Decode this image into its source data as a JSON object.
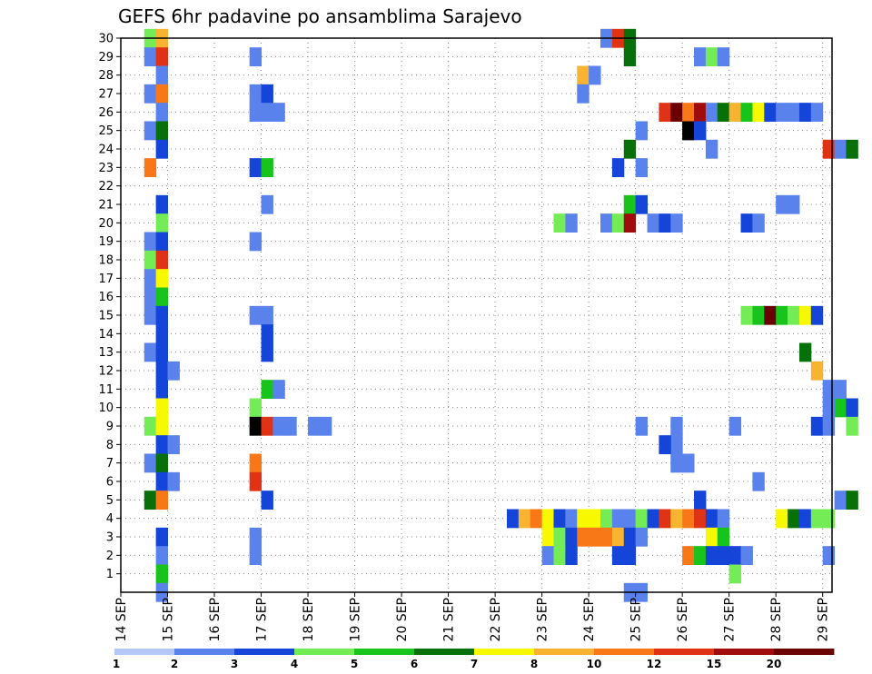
{
  "chart_data": {
    "type": "heatmap",
    "title": "GEFS 6hr padavine po ansamblima Sarajevo",
    "xlabel": "",
    "ylabel": "",
    "x_tick_labels": [
      "14 SEP",
      "15 SEP",
      "16 SEP",
      "17 SEP",
      "18 SEP",
      "19 SEP",
      "20 SEP",
      "21 SEP",
      "22 SEP",
      "23 SEP",
      "24 SEP",
      "25 SEP",
      "26 SEP",
      "27 SEP",
      "28 SEP",
      "29 SEP"
    ],
    "y_tick_labels": [
      "1",
      "2",
      "3",
      "4",
      "5",
      "6",
      "7",
      "8",
      "9",
      "10",
      "11",
      "12",
      "13",
      "14",
      "15",
      "16",
      "17",
      "18",
      "19",
      "20",
      "21",
      "22",
      "23",
      "24",
      "25",
      "26",
      "27",
      "28",
      "29",
      "30"
    ],
    "ylim": [
      0,
      30
    ],
    "xlim_days": [
      0,
      15.2
    ],
    "time_step_hours": 6,
    "grid": true,
    "colorbar": {
      "labels": [
        "1",
        "2",
        "3",
        "4",
        "5",
        "6",
        "7",
        "8",
        "10",
        "12",
        "15",
        "20"
      ],
      "colors": [
        "#b4c8f8",
        "#5a82ec",
        "#1444d8",
        "#74ec56",
        "#18c41c",
        "#087008",
        "#f8f800",
        "#f8b430",
        "#f87818",
        "#e03214",
        "#a00c0c",
        "#6a0000"
      ]
    },
    "cells": [
      [
        2,
        30,
        3
      ],
      [
        3,
        30,
        7
      ],
      [
        2,
        29,
        1
      ],
      [
        3,
        29,
        9
      ],
      [
        3,
        28,
        1
      ],
      [
        2,
        27,
        1
      ],
      [
        3,
        27,
        8
      ],
      [
        3,
        26,
        1
      ],
      [
        2,
        25,
        1
      ],
      [
        3,
        25,
        5
      ],
      [
        3,
        24,
        2
      ],
      [
        2,
        23,
        8
      ],
      [
        3,
        21,
        2
      ],
      [
        3,
        20,
        3
      ],
      [
        2,
        19,
        1
      ],
      [
        3,
        19,
        2
      ],
      [
        2,
        18,
        3
      ],
      [
        3,
        18,
        9
      ],
      [
        2,
        17,
        1
      ],
      [
        3,
        17,
        6
      ],
      [
        2,
        16,
        1
      ],
      [
        3,
        16,
        4
      ],
      [
        2,
        15,
        1
      ],
      [
        3,
        15,
        2
      ],
      [
        3,
        14,
        2
      ],
      [
        2,
        13,
        1
      ],
      [
        3,
        13,
        2
      ],
      [
        3,
        12,
        2
      ],
      [
        4,
        12,
        1
      ],
      [
        3,
        11,
        2
      ],
      [
        3,
        10,
        6
      ],
      [
        2,
        9,
        3
      ],
      [
        3,
        9,
        6
      ],
      [
        3,
        8,
        2
      ],
      [
        4,
        8,
        1
      ],
      [
        2,
        7,
        1
      ],
      [
        3,
        7,
        5
      ],
      [
        3,
        6,
        2
      ],
      [
        4,
        6,
        1
      ],
      [
        2,
        5,
        5
      ],
      [
        3,
        5,
        8
      ],
      [
        3,
        3,
        2
      ],
      [
        3,
        2,
        1
      ],
      [
        3,
        1,
        4
      ],
      [
        3,
        0,
        1
      ],
      [
        11,
        29,
        1
      ],
      [
        11,
        27,
        1
      ],
      [
        12,
        27,
        2
      ],
      [
        11,
        26,
        1
      ],
      [
        12,
        26,
        1
      ],
      [
        13,
        26,
        1
      ],
      [
        11,
        23,
        2
      ],
      [
        12,
        23,
        4
      ],
      [
        12,
        21,
        1
      ],
      [
        11,
        15,
        1
      ],
      [
        12,
        15,
        1
      ],
      [
        12,
        14,
        2
      ],
      [
        11,
        19,
        1
      ],
      [
        12,
        13,
        2
      ],
      [
        12,
        11,
        4
      ],
      [
        13,
        11,
        1
      ],
      [
        11,
        10,
        3
      ],
      [
        11,
        9,
        12
      ],
      [
        12,
        9,
        9
      ],
      [
        13,
        9,
        1
      ],
      [
        14,
        9,
        1
      ],
      [
        16,
        9,
        1
      ],
      [
        17,
        9,
        1
      ],
      [
        11,
        7,
        8
      ],
      [
        11,
        6,
        9
      ],
      [
        12,
        5,
        2
      ],
      [
        11,
        3,
        1
      ],
      [
        11,
        2,
        1
      ],
      [
        41,
        30,
        1
      ],
      [
        42,
        30,
        9
      ],
      [
        43,
        30,
        5
      ],
      [
        43,
        29,
        5
      ],
      [
        39,
        28,
        7
      ],
      [
        40,
        28,
        1
      ],
      [
        39,
        27,
        1
      ],
      [
        44,
        25,
        1
      ],
      [
        44,
        23,
        1
      ],
      [
        43,
        24,
        5
      ],
      [
        42,
        23,
        2
      ],
      [
        43,
        21,
        4
      ],
      [
        44,
        21,
        2
      ],
      [
        37,
        20,
        3
      ],
      [
        38,
        20,
        1
      ],
      [
        41,
        20,
        1
      ],
      [
        42,
        20,
        3
      ],
      [
        43,
        20,
        10
      ],
      [
        45,
        20,
        1
      ],
      [
        46,
        20,
        2
      ],
      [
        47,
        20,
        1
      ],
      [
        44,
        9,
        1
      ],
      [
        47,
        9,
        1
      ],
      [
        47,
        8,
        1
      ],
      [
        46,
        8,
        2
      ],
      [
        47,
        7,
        1
      ],
      [
        48,
        7,
        1
      ],
      [
        49,
        29,
        1
      ],
      [
        50,
        29,
        3
      ],
      [
        51,
        29,
        1
      ],
      [
        46,
        26,
        9
      ],
      [
        47,
        26,
        11
      ],
      [
        48,
        26,
        8
      ],
      [
        49,
        26,
        10
      ],
      [
        50,
        26,
        1
      ],
      [
        51,
        26,
        5
      ],
      [
        52,
        26,
        7
      ],
      [
        53,
        26,
        4
      ],
      [
        54,
        26,
        6
      ],
      [
        55,
        26,
        2
      ],
      [
        56,
        26,
        1
      ],
      [
        57,
        26,
        1
      ],
      [
        58,
        26,
        2
      ],
      [
        59,
        26,
        1
      ],
      [
        48,
        25,
        1
      ],
      [
        48,
        25,
        12
      ],
      [
        49,
        25,
        2
      ],
      [
        50,
        24,
        1
      ],
      [
        56,
        21,
        1
      ],
      [
        57,
        21,
        1
      ],
      [
        53,
        20,
        2
      ],
      [
        54,
        20,
        1
      ],
      [
        53,
        15,
        3
      ],
      [
        54,
        15,
        4
      ],
      [
        55,
        15,
        11
      ],
      [
        56,
        15,
        4
      ],
      [
        57,
        15,
        3
      ],
      [
        58,
        15,
        6
      ],
      [
        59,
        15,
        2
      ],
      [
        59,
        12,
        7
      ],
      [
        60,
        11,
        1
      ],
      [
        61,
        10,
        4
      ],
      [
        61,
        11,
        1
      ],
      [
        60,
        10,
        1
      ],
      [
        62,
        10,
        2
      ],
      [
        52,
        9,
        1
      ],
      [
        59,
        9,
        2
      ],
      [
        60,
        9,
        1
      ],
      [
        62,
        9,
        3
      ],
      [
        54,
        6,
        1
      ],
      [
        49,
        5,
        2
      ],
      [
        61,
        5,
        1
      ],
      [
        62,
        5,
        5
      ],
      [
        60,
        24,
        9
      ],
      [
        61,
        24,
        1
      ],
      [
        62,
        24,
        5
      ],
      [
        58,
        13,
        5
      ],
      [
        33,
        4,
        2
      ],
      [
        34,
        4,
        7
      ],
      [
        35,
        4,
        8
      ],
      [
        36,
        4,
        6
      ],
      [
        37,
        4,
        2
      ],
      [
        38,
        4,
        1
      ],
      [
        39,
        4,
        6
      ],
      [
        40,
        4,
        6
      ],
      [
        41,
        4,
        3
      ],
      [
        42,
        4,
        1
      ],
      [
        43,
        4,
        1
      ],
      [
        44,
        4,
        3
      ],
      [
        45,
        4,
        2
      ],
      [
        46,
        4,
        9
      ],
      [
        47,
        4,
        7
      ],
      [
        48,
        4,
        8
      ],
      [
        49,
        4,
        9
      ],
      [
        50,
        4,
        2
      ],
      [
        51,
        4,
        1
      ],
      [
        56,
        4,
        6
      ],
      [
        57,
        4,
        5
      ],
      [
        58,
        4,
        2
      ],
      [
        59,
        4,
        3
      ],
      [
        60,
        4,
        3
      ],
      [
        36,
        3,
        6
      ],
      [
        37,
        3,
        3
      ],
      [
        38,
        3,
        2
      ],
      [
        39,
        3,
        8
      ],
      [
        40,
        3,
        8
      ],
      [
        41,
        3,
        8
      ],
      [
        42,
        3,
        7
      ],
      [
        43,
        3,
        2
      ],
      [
        44,
        3,
        1
      ],
      [
        50,
        3,
        6
      ],
      [
        51,
        3,
        4
      ],
      [
        36,
        2,
        1
      ],
      [
        37,
        2,
        3
      ],
      [
        38,
        2,
        2
      ],
      [
        42,
        2,
        2
      ],
      [
        43,
        2,
        2
      ],
      [
        48,
        2,
        8
      ],
      [
        49,
        2,
        4
      ],
      [
        50,
        2,
        2
      ],
      [
        51,
        2,
        2
      ],
      [
        52,
        2,
        2
      ],
      [
        53,
        2,
        1
      ],
      [
        60,
        2,
        1
      ],
      [
        52,
        1,
        3
      ],
      [
        43,
        0,
        1
      ],
      [
        44,
        0,
        1
      ]
    ]
  }
}
